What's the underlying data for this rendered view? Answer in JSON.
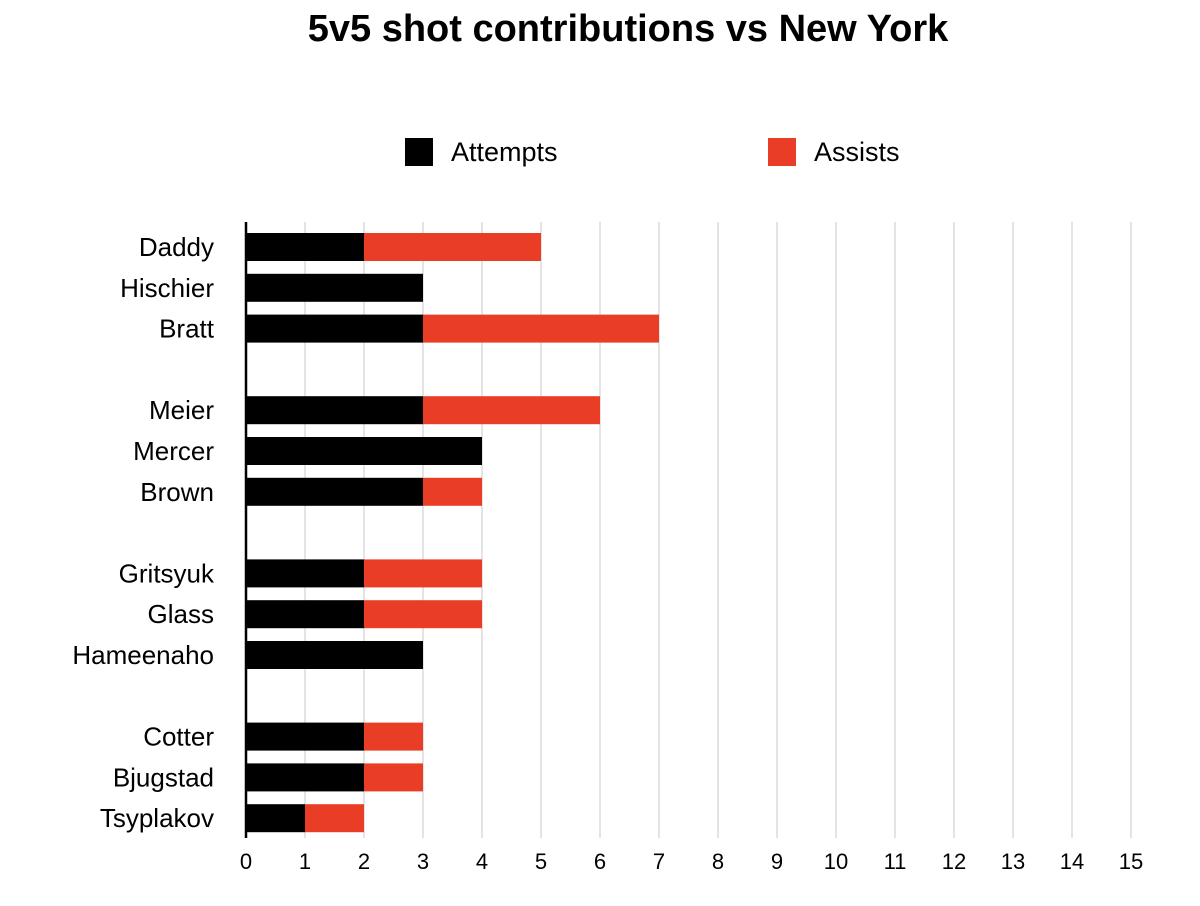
{
  "chart_data": {
    "type": "bar",
    "orientation": "horizontal",
    "stacked": true,
    "title": "5v5 shot contributions vs New York",
    "xlabel": "",
    "ylabel": "",
    "xlim": [
      0,
      15
    ],
    "x_ticks": [
      "0",
      "1",
      "2",
      "3",
      "4",
      "5",
      "6",
      "7",
      "8",
      "9",
      "10",
      "11",
      "12",
      "13",
      "14",
      "15"
    ],
    "grid": "vertical",
    "legend_position": "top",
    "categories": [
      "Daddy",
      "Hischier",
      "Bratt",
      "",
      "Meier",
      "Mercer",
      "Brown",
      "",
      "Gritsyuk",
      "Glass",
      "Hameenaho",
      "",
      "Cotter",
      "Bjugstad",
      "Tsyplakov"
    ],
    "series": [
      {
        "name": "Attempts",
        "color": "#000000",
        "values": [
          2,
          3,
          3,
          null,
          3,
          4,
          3,
          null,
          2,
          2,
          3,
          null,
          2,
          2,
          1
        ]
      },
      {
        "name": "Assists",
        "color": "#ea3d26",
        "values": [
          3,
          0,
          4,
          null,
          3,
          0,
          1,
          null,
          2,
          2,
          0,
          null,
          1,
          1,
          1
        ]
      }
    ]
  }
}
